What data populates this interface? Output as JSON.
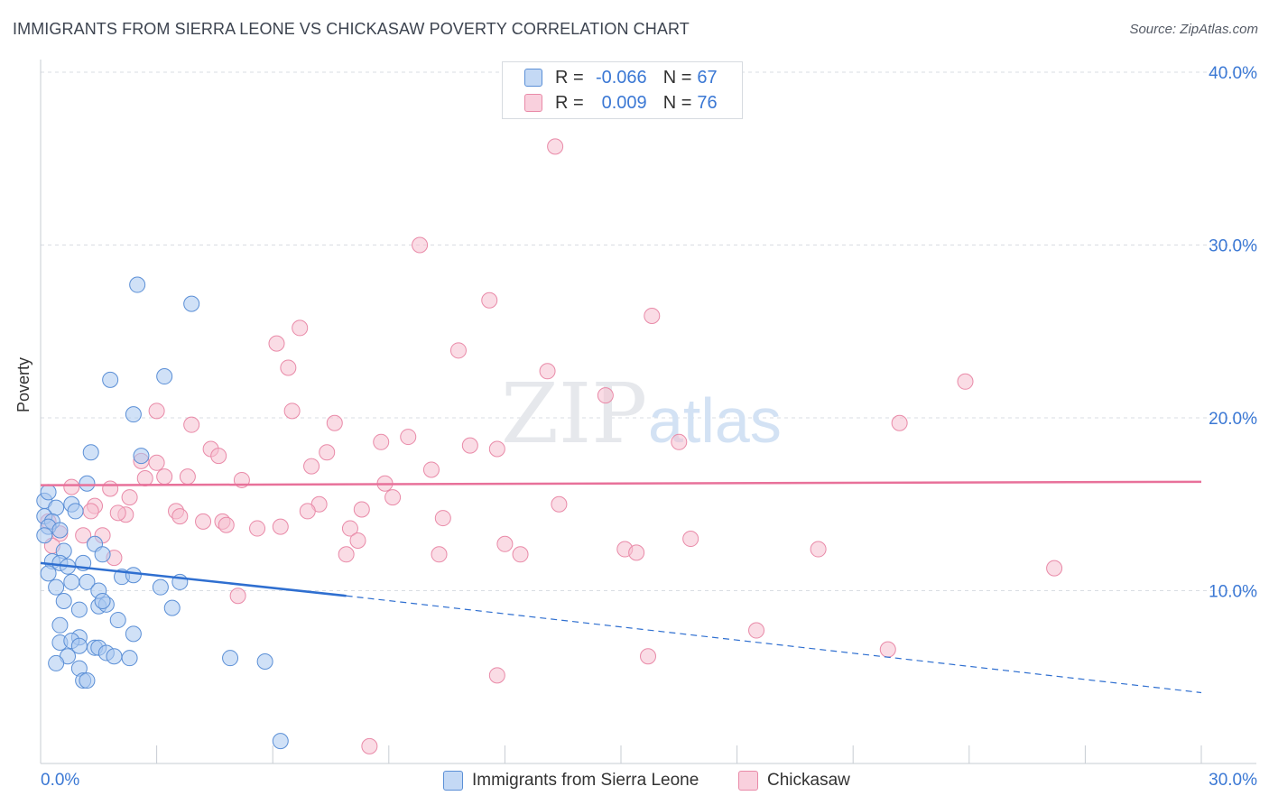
{
  "title": "IMMIGRANTS FROM SIERRA LEONE VS CHICKASAW POVERTY CORRELATION CHART",
  "source": "Source: ZipAtlas.com",
  "watermark": {
    "zip": "ZIP",
    "atlas": "atlas"
  },
  "legend": {
    "rows": [
      {
        "r_label": "R =",
        "r_value": "-0.066",
        "n_label": "N =",
        "n_value": "67"
      },
      {
        "r_label": "R =",
        "r_value": "0.009",
        "n_label": "N =",
        "n_value": "76"
      }
    ]
  },
  "bottom_legend": {
    "series1": "Immigrants from Sierra Leone",
    "series2": "Chickasaw"
  },
  "colors": {
    "blue_fill": "#a9c8f0",
    "blue_stroke": "#5b8fd6",
    "blue_line": "#2f6fd0",
    "pink_fill": "#f6bfd0",
    "pink_stroke": "#e98aa8",
    "pink_line": "#e8719a",
    "axis_text": "#3b78d4",
    "grid": "#d9dde3"
  },
  "chart_data": {
    "type": "scatter",
    "title": "IMMIGRANTS FROM SIERRA LEONE VS CHICKASAW POVERTY CORRELATION CHART",
    "xlabel": "",
    "ylabel": "Poverty",
    "xlim": [
      0,
      30
    ],
    "ylim": [
      0,
      40
    ],
    "x_tick_labels": [
      "0.0%",
      "30.0%"
    ],
    "y_ticks": [
      10,
      20,
      30,
      40
    ],
    "y_tick_labels": [
      "10.0%",
      "20.0%",
      "30.0%",
      "40.0%"
    ],
    "series": [
      {
        "name": "Immigrants from Sierra Leone",
        "R": -0.066,
        "N": 67,
        "trend": {
          "x0": 0,
          "y0": 11.6,
          "x1": 7.9,
          "y1": 9.7,
          "x_dashed_end": 30,
          "y_dashed_end": 4.1
        },
        "points": [
          [
            2.5,
            27.7
          ],
          [
            3.9,
            26.6
          ],
          [
            1.8,
            22.2
          ],
          [
            3.2,
            22.4
          ],
          [
            2.4,
            20.2
          ],
          [
            1.3,
            18.0
          ],
          [
            2.6,
            17.8
          ],
          [
            0.1,
            15.2
          ],
          [
            0.2,
            15.7
          ],
          [
            1.2,
            16.2
          ],
          [
            0.4,
            14.8
          ],
          [
            0.8,
            15.0
          ],
          [
            0.9,
            14.6
          ],
          [
            0.1,
            14.3
          ],
          [
            0.3,
            14.0
          ],
          [
            0.2,
            13.7
          ],
          [
            0.5,
            13.5
          ],
          [
            0.1,
            13.2
          ],
          [
            1.4,
            12.7
          ],
          [
            0.6,
            12.3
          ],
          [
            1.6,
            12.1
          ],
          [
            0.3,
            11.7
          ],
          [
            0.5,
            11.6
          ],
          [
            0.7,
            11.4
          ],
          [
            1.1,
            11.6
          ],
          [
            0.2,
            11.0
          ],
          [
            2.1,
            10.8
          ],
          [
            2.4,
            10.9
          ],
          [
            0.8,
            10.5
          ],
          [
            1.2,
            10.5
          ],
          [
            3.6,
            10.5
          ],
          [
            0.4,
            10.2
          ],
          [
            3.1,
            10.2
          ],
          [
            1.5,
            10.0
          ],
          [
            0.6,
            9.4
          ],
          [
            1.5,
            9.1
          ],
          [
            1.7,
            9.2
          ],
          [
            1.6,
            9.4
          ],
          [
            1.0,
            8.9
          ],
          [
            3.4,
            9.0
          ],
          [
            2.0,
            8.3
          ],
          [
            0.5,
            8.0
          ],
          [
            2.4,
            7.5
          ],
          [
            1.0,
            7.3
          ],
          [
            0.5,
            7.0
          ],
          [
            0.8,
            7.1
          ],
          [
            1.0,
            6.8
          ],
          [
            1.4,
            6.7
          ],
          [
            1.5,
            6.7
          ],
          [
            1.7,
            6.4
          ],
          [
            1.9,
            6.2
          ],
          [
            0.7,
            6.2
          ],
          [
            2.3,
            6.1
          ],
          [
            4.9,
            6.1
          ],
          [
            5.8,
            5.9
          ],
          [
            0.4,
            5.8
          ],
          [
            1.0,
            5.5
          ],
          [
            1.1,
            4.8
          ],
          [
            1.2,
            4.8
          ],
          [
            6.2,
            1.3
          ]
        ]
      },
      {
        "name": "Chickasaw",
        "R": 0.009,
        "N": 76,
        "trend": {
          "x0": 0,
          "y0": 16.1,
          "x1": 30,
          "y1": 16.3
        },
        "points": [
          [
            13.3,
            35.7
          ],
          [
            9.8,
            30.0
          ],
          [
            11.6,
            26.8
          ],
          [
            15.8,
            25.9
          ],
          [
            6.7,
            25.2
          ],
          [
            6.1,
            24.3
          ],
          [
            10.8,
            23.9
          ],
          [
            6.4,
            22.9
          ],
          [
            13.1,
            22.7
          ],
          [
            23.9,
            22.1
          ],
          [
            14.6,
            21.3
          ],
          [
            3.0,
            20.4
          ],
          [
            6.5,
            20.4
          ],
          [
            22.2,
            19.7
          ],
          [
            3.9,
            19.6
          ],
          [
            7.6,
            19.7
          ],
          [
            9.5,
            18.9
          ],
          [
            8.8,
            18.6
          ],
          [
            11.1,
            18.4
          ],
          [
            11.8,
            18.2
          ],
          [
            16.5,
            18.6
          ],
          [
            4.4,
            18.2
          ],
          [
            4.6,
            17.8
          ],
          [
            7.4,
            18.0
          ],
          [
            2.6,
            17.5
          ],
          [
            3.0,
            17.4
          ],
          [
            7.0,
            17.2
          ],
          [
            10.1,
            17.0
          ],
          [
            2.7,
            16.5
          ],
          [
            3.2,
            16.6
          ],
          [
            3.8,
            16.6
          ],
          [
            5.2,
            16.4
          ],
          [
            8.9,
            16.2
          ],
          [
            0.8,
            16.0
          ],
          [
            1.8,
            15.9
          ],
          [
            2.3,
            15.4
          ],
          [
            9.1,
            15.4
          ],
          [
            1.4,
            14.9
          ],
          [
            7.2,
            15.0
          ],
          [
            13.4,
            15.0
          ],
          [
            1.3,
            14.6
          ],
          [
            3.5,
            14.6
          ],
          [
            6.9,
            14.6
          ],
          [
            8.3,
            14.7
          ],
          [
            2.2,
            14.4
          ],
          [
            3.6,
            14.3
          ],
          [
            10.4,
            14.2
          ],
          [
            0.2,
            14.0
          ],
          [
            4.2,
            14.0
          ],
          [
            4.7,
            14.0
          ],
          [
            4.8,
            13.8
          ],
          [
            5.6,
            13.6
          ],
          [
            6.2,
            13.7
          ],
          [
            8.0,
            13.6
          ],
          [
            0.5,
            13.3
          ],
          [
            1.1,
            13.2
          ],
          [
            1.6,
            13.2
          ],
          [
            8.2,
            12.9
          ],
          [
            12.0,
            12.7
          ],
          [
            15.1,
            12.4
          ],
          [
            15.4,
            12.2
          ],
          [
            16.8,
            13.0
          ],
          [
            20.1,
            12.4
          ],
          [
            7.9,
            12.1
          ],
          [
            10.3,
            12.1
          ],
          [
            12.4,
            12.1
          ],
          [
            1.9,
            11.9
          ],
          [
            26.2,
            11.3
          ],
          [
            5.1,
            9.7
          ],
          [
            18.5,
            7.7
          ],
          [
            21.9,
            6.6
          ],
          [
            15.7,
            6.2
          ],
          [
            11.8,
            5.1
          ],
          [
            8.5,
            1.0
          ],
          [
            0.3,
            12.6
          ],
          [
            2.0,
            14.5
          ]
        ]
      }
    ]
  }
}
